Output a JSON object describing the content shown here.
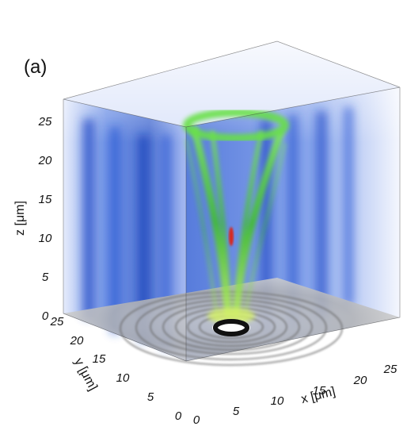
{
  "figure": {
    "panel_label": "(a)",
    "axes": {
      "x": {
        "label": "x [μm]",
        "ticks": [
          "0",
          "5",
          "10",
          "15",
          "20",
          "25"
        ]
      },
      "y": {
        "label": "y [μm]",
        "ticks": [
          "0",
          "5",
          "10",
          "15",
          "20",
          "25"
        ]
      },
      "z": {
        "label": "z [μm]",
        "ticks": [
          "0",
          "5",
          "10",
          "15",
          "20",
          "25"
        ]
      }
    }
  },
  "colors": {
    "volume_blue": "#1d4fd8",
    "beam_green": "#5fdc3a",
    "focus_red": "#d8281c",
    "floor_gray": "#b9b9b9"
  }
}
